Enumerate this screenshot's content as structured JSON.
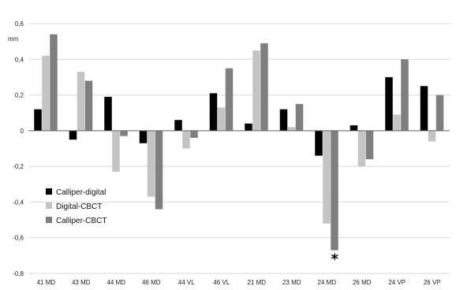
{
  "chart_data": {
    "type": "bar",
    "ylabel": "mm",
    "ylim": [
      -0.8,
      0.6
    ],
    "yticks": [
      "0,6",
      "0,4",
      "0,2",
      "0",
      "-0,2",
      "-0,4",
      "-0,6",
      "-0,8"
    ],
    "ytick_values": [
      0.6,
      0.4,
      0.2,
      0,
      -0.2,
      -0.4,
      -0.6,
      -0.8
    ],
    "grid": true,
    "legend_position": "bottom-left",
    "categories": [
      "41 MD",
      "43 MD",
      "44 MD",
      "46 MD",
      "44 VL",
      "46 VL",
      "21 MD",
      "23 MD",
      "24 MD",
      "26 MD",
      "24 VP",
      "26 VP"
    ],
    "series": [
      {
        "name": "Calliper-digital",
        "color": "#000000",
        "values": [
          0.12,
          -0.05,
          0.19,
          -0.07,
          0.06,
          0.21,
          0.04,
          0.12,
          -0.14,
          0.03,
          0.3,
          0.25
        ]
      },
      {
        "name": "Digital-CBCT",
        "color": "#c4c4c4",
        "values": [
          0.42,
          0.33,
          -0.23,
          -0.37,
          -0.1,
          0.13,
          0.45,
          0.02,
          -0.52,
          -0.2,
          0.09,
          -0.06
        ]
      },
      {
        "name": "Calliper-CBCT",
        "color": "#7f7f7f",
        "values": [
          0.54,
          0.28,
          -0.03,
          -0.44,
          -0.04,
          0.35,
          0.49,
          0.15,
          -0.67,
          -0.16,
          0.4,
          0.2
        ]
      }
    ],
    "annotations": [
      {
        "text": "*",
        "category": "24 MD",
        "series": "Calliper-CBCT"
      }
    ]
  }
}
